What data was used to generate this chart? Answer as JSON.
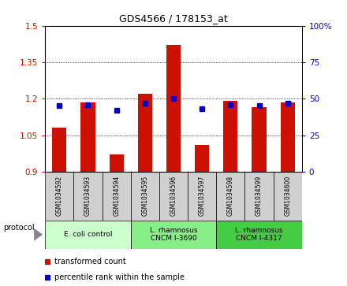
{
  "title": "GDS4566 / 178153_at",
  "samples": [
    "GSM1034592",
    "GSM1034593",
    "GSM1034594",
    "GSM1034595",
    "GSM1034596",
    "GSM1034597",
    "GSM1034598",
    "GSM1034599",
    "GSM1034600"
  ],
  "transformed_count": [
    1.08,
    1.185,
    0.97,
    1.22,
    1.42,
    1.01,
    1.19,
    1.165,
    1.185
  ],
  "percentile_rank": [
    45,
    46,
    42,
    47,
    50,
    43,
    46,
    45,
    47
  ],
  "ylim_left": [
    0.9,
    1.5
  ],
  "ylim_right": [
    0,
    100
  ],
  "yticks_left": [
    0.9,
    1.05,
    1.2,
    1.35,
    1.5
  ],
  "yticks_right": [
    0,
    25,
    50,
    75,
    100
  ],
  "groups": [
    {
      "label": "E. coli control",
      "indices": [
        0,
        1,
        2
      ],
      "color": "#ccffcc"
    },
    {
      "label": "L. rhamnosus\nCNCM I-3690",
      "indices": [
        3,
        4,
        5
      ],
      "color": "#88ee88"
    },
    {
      "label": "L. rhamnosus\nCNCM I-4317",
      "indices": [
        6,
        7,
        8
      ],
      "color": "#44cc44"
    }
  ],
  "bar_color": "#cc1100",
  "marker_color": "#0000cc",
  "bar_width": 0.5,
  "baseline": 0.9,
  "protocol_label": "protocol",
  "legend_tc": "transformed count",
  "legend_pr": "percentile rank within the sample",
  "tick_label_color_left": "#cc1100",
  "tick_label_color_right": "#0000cc",
  "gridline_levels": [
    1.05,
    1.2,
    1.35
  ],
  "xlabel_gray": "#d0d0d0",
  "group0_color": "#ccffcc",
  "group1_color": "#88ee88",
  "group2_color": "#44cc44"
}
